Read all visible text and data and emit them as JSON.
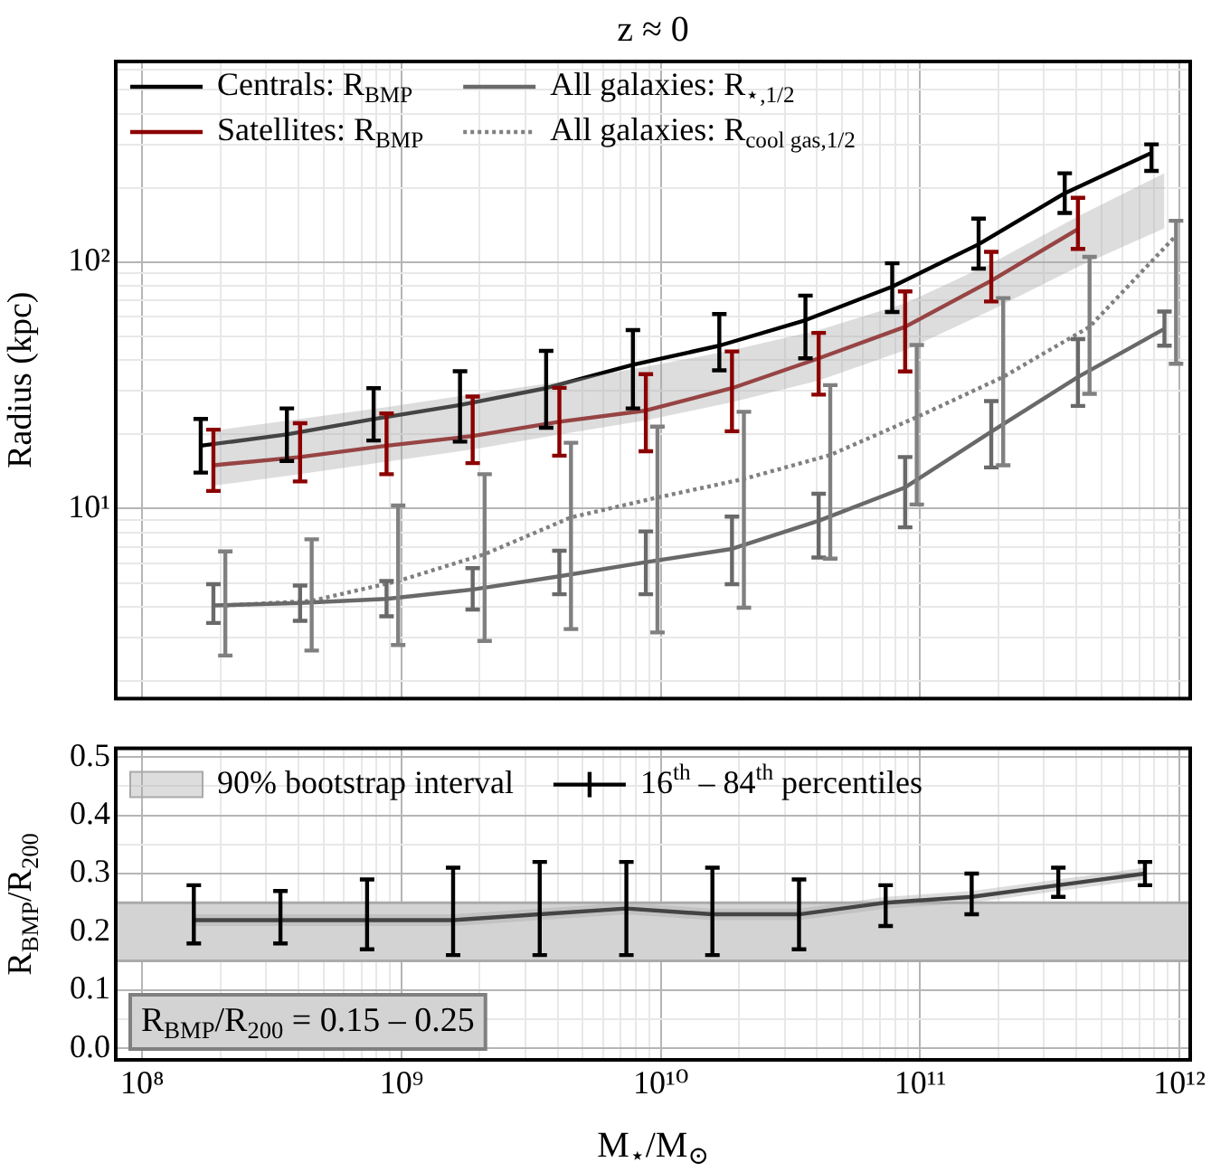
{
  "chart_data": [
    {
      "type": "line",
      "title": "z ≈ 0",
      "ylabel": "Radius (kpc)",
      "log": "xy",
      "grid": true,
      "legend": "top left",
      "tick_labels": "y",
      "marker": "none",
      "xlim": [
        79000000.0,
        1100000000000.0
      ],
      "ylim": [
        1.7,
        650
      ],
      "xticks": [
        {
          "value": 100000000.0,
          "label": null
        },
        {
          "value": 200000000.0,
          "label": null
        },
        {
          "value": 300000000.0,
          "label": null
        },
        {
          "value": 400000000.0,
          "label": null
        },
        {
          "value": 500000000.0,
          "label": null
        },
        {
          "value": 600000000.0,
          "label": null
        },
        {
          "value": 700000000.0,
          "label": null
        },
        {
          "value": 800000000.0,
          "label": null
        },
        {
          "value": 900000000.0,
          "label": null
        },
        {
          "value": 1000000000.0,
          "label": null
        },
        {
          "value": 2000000000.0,
          "label": null
        },
        {
          "value": 3000000000.0,
          "label": null
        },
        {
          "value": 4000000000.0,
          "label": null
        },
        {
          "value": 5000000000.0,
          "label": null
        },
        {
          "value": 6000000000.0,
          "label": null
        },
        {
          "value": 7000000000.0,
          "label": null
        },
        {
          "value": 8000000000.0,
          "label": null
        },
        {
          "value": 9000000000.0,
          "label": null
        },
        {
          "value": 10000000000.0,
          "label": null
        },
        {
          "value": 20000000000.0,
          "label": null
        },
        {
          "value": 30000000000.0,
          "label": null
        },
        {
          "value": 40000000000.0,
          "label": null
        },
        {
          "value": 50000000000.0,
          "label": null
        },
        {
          "value": 60000000000.0,
          "label": null
        },
        {
          "value": 70000000000.0,
          "label": null
        },
        {
          "value": 80000000000.0,
          "label": null
        },
        {
          "value": 90000000000.0,
          "label": null
        },
        {
          "value": 100000000000.0,
          "label": null
        },
        {
          "value": 200000000000.0,
          "label": null
        },
        {
          "value": 300000000000.0,
          "label": null
        },
        {
          "value": 400000000000.0,
          "label": null
        },
        {
          "value": 500000000000.0,
          "label": null
        },
        {
          "value": 600000000000.0,
          "label": null
        },
        {
          "value": 700000000000.0,
          "label": null
        },
        {
          "value": 800000000000.0,
          "label": null
        },
        {
          "value": 900000000000.0,
          "label": null
        },
        {
          "value": 1000000000000.0,
          "label": null
        }
      ],
      "yticks": [
        {
          "value": 2,
          "label": null
        },
        {
          "value": 3,
          "label": null
        },
        {
          "value": 4,
          "label": null
        },
        {
          "value": 5,
          "label": null
        },
        {
          "value": 6,
          "label": null
        },
        {
          "value": 7,
          "label": null
        },
        {
          "value": 8,
          "label": null
        },
        {
          "value": 9,
          "label": null
        },
        {
          "value": 10,
          "label": "10¹"
        },
        {
          "value": 20,
          "label": null
        },
        {
          "value": 30,
          "label": null
        },
        {
          "value": 40,
          "label": null
        },
        {
          "value": 50,
          "label": null
        },
        {
          "value": 60,
          "label": null
        },
        {
          "value": 70,
          "label": null
        },
        {
          "value": 80,
          "label": null
        },
        {
          "value": 90,
          "label": null
        },
        {
          "value": 100,
          "label": "10²"
        },
        {
          "value": 200,
          "label": null
        },
        {
          "value": 300,
          "label": null
        },
        {
          "value": 400,
          "label": null
        },
        {
          "value": 500,
          "label": null
        },
        {
          "value": 600,
          "label": null
        }
      ],
      "series": [
        {
          "type": "area",
          "color": "#a9a9a9",
          "x": [
            188000000.0,
            406000000.0,
            875000000.0,
            1880000000.0,
            4060000000.0,
            8750000000.0,
            18800000000.0,
            40600000000.0,
            87500000000.0,
            188000000000.0,
            406000000000.0,
            875000000000.0
          ],
          "values": [
            null,
            null,
            null,
            null,
            null,
            null,
            null,
            null,
            null,
            null,
            null,
            null
          ],
          "lower": [
            12.4,
            13.8,
            15.5,
            17.4,
            20.0,
            22.8,
            27.0,
            33.1,
            43.9,
            63.8,
            95.7,
            137
          ],
          "upper": [
            20.7,
            23.1,
            25.8,
            29.1,
            32.7,
            37.6,
            43.9,
            53.0,
            67.9,
            98.8,
            153,
            229
          ]
        },
        {
          "name": "Centrals: R$_{BMP}$",
          "color": "#000000",
          "x": [
            168000000.0,
            361000000.0,
            780000000.0,
            1680000000.0,
            3610000000.0,
            7800000000.0,
            16800000000.0,
            36100000000.0,
            78000000000.0,
            168000000000.0,
            361000000000.0,
            780000000000.0
          ],
          "values": [
            18.0,
            20.0,
            23.1,
            26.3,
            30.8,
            38.3,
            45.8,
            58.1,
            79.4,
            118,
            190,
            277
          ],
          "errors": [
            [
              14.0,
              23.1
            ],
            [
              15.6,
              25.5
            ],
            [
              18.9,
              30.8
            ],
            [
              18.7,
              36.1
            ],
            [
              21.3,
              43.6
            ],
            [
              25.5,
              53.0
            ],
            [
              36.4,
              61.5
            ],
            [
              40.7,
              73.1
            ],
            [
              62.7,
              98.8
            ],
            [
              94,
              150
            ],
            [
              158,
              229
            ],
            [
              234,
              300
            ]
          ]
        },
        {
          "name": "Satellites: R$_{BMP}$",
          "color": "#8b0000",
          "x": [
            188000000.0,
            406000000.0,
            875000000.0,
            1880000000.0,
            4060000000.0,
            8750000000.0,
            18800000000.0,
            40600000000.0,
            87500000000.0,
            188000000000.0,
            406000000000.0
          ],
          "values": [
            15.0,
            16.2,
            18.0,
            19.7,
            22.5,
            25.0,
            30.8,
            40.7,
            54.6,
            84,
            136
          ],
          "errors": [
            [
              11.8,
              20.9
            ],
            [
              12.9,
              22.2
            ],
            [
              13.8,
              24.3
            ],
            [
              15.3,
              28.5
            ],
            [
              16.4,
              30.9
            ],
            [
              17.1,
              35.1
            ],
            [
              20.6,
              43.4
            ],
            [
              29.0,
              51.6
            ],
            [
              36.0,
              76
            ],
            [
              69.2,
              110
            ],
            [
              113,
              182
            ]
          ]
        },
        {
          "name": "All galaxies: R$_{⋆,1/2}$",
          "color": "#696969",
          "x": [
            188000000.0,
            406000000.0,
            875000000.0,
            1880000000.0,
            4060000000.0,
            8750000000.0,
            18800000000.0,
            40600000000.0,
            87500000000.0,
            188000000000.0,
            406000000000.0,
            875000000000.0
          ],
          "values": [
            4.05,
            4.15,
            4.31,
            4.7,
            5.32,
            6.07,
            6.87,
            8.93,
            12.2,
            20.5,
            34.2,
            53.6
          ],
          "errors": [
            [
              3.44,
              4.94
            ],
            [
              3.51,
              4.88
            ],
            [
              3.66,
              5.09
            ],
            [
              3.9,
              5.74
            ],
            [
              4.5,
              6.75
            ],
            [
              4.5,
              8.09
            ],
            [
              4.94,
              9.29
            ],
            [
              6.34,
              11.5
            ],
            [
              8.4,
              16.2
            ],
            [
              14.7,
              27.3
            ],
            [
              26.1,
              48.7
            ],
            [
              45.8,
              63.0
            ]
          ]
        },
        {
          "name": "All galaxies: R$_{cool gas,1/2}$",
          "color": "#808080",
          "line_style": "dotted",
          "x": [
            209000000.0,
            450000000.0,
            970000000.0,
            2090000000.0,
            4500000000.0,
            9700000000.0,
            20900000000.0,
            45000000000.0,
            97000000000.0,
            209000000000.0,
            450000000000.0,
            970000000000.0
          ],
          "values": [
            4.05,
            4.23,
            5.09,
            6.54,
            9.22,
            11.1,
            13.2,
            16.5,
            23.5,
            34.2,
            54.6,
            128
          ],
          "errors": [
            [
              2.54,
              6.71
            ],
            [
              2.66,
              7.51
            ],
            [
              2.8,
              10.3
            ],
            [
              2.91,
              13.8
            ],
            [
              3.25,
              18.5
            ],
            [
              3.15,
              21.5
            ],
            [
              3.97,
              24.7
            ],
            [
              6.27,
              31.7
            ],
            [
              10.4,
              46.1
            ],
            [
              15.0,
              71.4
            ],
            [
              29.2,
              105
            ],
            [
              38.7,
              147
            ]
          ]
        }
      ]
    },
    {
      "type": "line",
      "xlabel": "M$_{⋆}$/M$_{⊙}$",
      "ylabel": "R$_{BMP}$/R$_{200}$",
      "log": "x",
      "grid": true,
      "legend": "top left",
      "marker": "none",
      "xlim": [
        79000000.0,
        1100000000000.0
      ],
      "ylim": [
        -0.02,
        0.515
      ],
      "xticks": [
        {
          "value": 100000000.0,
          "label": "10⁸"
        },
        {
          "value": 200000000.0,
          "label": null
        },
        {
          "value": 300000000.0,
          "label": null
        },
        {
          "value": 400000000.0,
          "label": null
        },
        {
          "value": 500000000.0,
          "label": null
        },
        {
          "value": 600000000.0,
          "label": null
        },
        {
          "value": 700000000.0,
          "label": null
        },
        {
          "value": 800000000.0,
          "label": null
        },
        {
          "value": 900000000.0,
          "label": null
        },
        {
          "value": 1000000000.0,
          "label": "10⁹"
        },
        {
          "value": 2000000000.0,
          "label": null
        },
        {
          "value": 3000000000.0,
          "label": null
        },
        {
          "value": 4000000000.0,
          "label": null
        },
        {
          "value": 5000000000.0,
          "label": null
        },
        {
          "value": 6000000000.0,
          "label": null
        },
        {
          "value": 7000000000.0,
          "label": null
        },
        {
          "value": 8000000000.0,
          "label": null
        },
        {
          "value": 9000000000.0,
          "label": null
        },
        {
          "value": 10000000000.0,
          "label": "10¹⁰"
        },
        {
          "value": 20000000000.0,
          "label": null
        },
        {
          "value": 30000000000.0,
          "label": null
        },
        {
          "value": 40000000000.0,
          "label": null
        },
        {
          "value": 50000000000.0,
          "label": null
        },
        {
          "value": 60000000000.0,
          "label": null
        },
        {
          "value": 70000000000.0,
          "label": null
        },
        {
          "value": 80000000000.0,
          "label": null
        },
        {
          "value": 90000000000.0,
          "label": null
        },
        {
          "value": 100000000000.0,
          "label": "10¹¹"
        },
        {
          "value": 200000000000.0,
          "label": null
        },
        {
          "value": 300000000000.0,
          "label": null
        },
        {
          "value": 400000000000.0,
          "label": null
        },
        {
          "value": 500000000000.0,
          "label": null
        },
        {
          "value": 600000000000.0,
          "label": null
        },
        {
          "value": 700000000000.0,
          "label": null
        },
        {
          "value": 800000000000.0,
          "label": null
        },
        {
          "value": 900000000000.0,
          "label": null
        },
        {
          "value": 1000000000000.0,
          "label": "10¹²"
        }
      ],
      "yticks": [
        {
          "value": 0,
          "label": "0.0"
        },
        {
          "value": 0.05,
          "label": null
        },
        {
          "value": 0.1,
          "label": "0.1"
        },
        {
          "value": 0.15,
          "label": null
        },
        {
          "value": 0.2,
          "label": "0.2"
        },
        {
          "value": 0.25,
          "label": null
        },
        {
          "value": 0.3,
          "label": "0.3"
        },
        {
          "value": 0.35,
          "label": null
        },
        {
          "value": 0.4,
          "label": "0.4"
        },
        {
          "value": 0.45,
          "label": null
        },
        {
          "value": 0.5,
          "label": "0.5"
        }
      ],
      "bands": [
        {
          "axis": "y",
          "from": 0.15,
          "to": 0.25,
          "label": "R$_{BMP}$/R$_{200}$ = 0.15 – 0.25",
          "color": "#d3d3d3"
        }
      ],
      "series": [
        {
          "name": "90% bootstrap interval",
          "type": "area",
          "color": "#a9a9a9",
          "x": [
            158000000.0,
            341000000.0,
            736000000.0,
            1580000000.0,
            3410000000.0,
            7360000000.0,
            15800000000.0,
            34100000000.0,
            73600000000.0,
            158000000000.0,
            341000000000.0,
            736000000000.0
          ],
          "values": [
            null,
            null,
            null,
            null,
            null,
            null,
            null,
            null,
            null,
            null,
            null,
            null
          ],
          "lower": [
            0.21,
            0.21,
            0.21,
            0.21,
            0.22,
            0.23,
            0.22,
            0.22,
            0.24,
            0.25,
            0.27,
            0.29
          ],
          "upper": [
            0.23,
            0.23,
            0.23,
            0.23,
            0.24,
            0.25,
            0.24,
            0.24,
            0.26,
            0.27,
            0.29,
            0.31
          ]
        },
        {
          "name": "16$^{th}$ – 84$^{th}$ percentiles",
          "color": "#000000",
          "x": [
            158000000.0,
            341000000.0,
            736000000.0,
            1580000000.0,
            3410000000.0,
            7360000000.0,
            15800000000.0,
            34100000000.0,
            73600000000.0,
            158000000000.0,
            341000000000.0,
            736000000000.0
          ],
          "values": [
            0.22,
            0.22,
            0.22,
            0.22,
            0.23,
            0.24,
            0.23,
            0.23,
            0.25,
            0.26,
            0.28,
            0.3
          ],
          "errors": [
            [
              0.18,
              0.28
            ],
            [
              0.18,
              0.27
            ],
            [
              0.17,
              0.29
            ],
            [
              0.16,
              0.31
            ],
            [
              0.16,
              0.32
            ],
            [
              0.16,
              0.32
            ],
            [
              0.16,
              0.31
            ],
            [
              0.17,
              0.29
            ],
            [
              0.21,
              0.28
            ],
            [
              0.23,
              0.3
            ],
            [
              0.26,
              0.31
            ],
            [
              0.28,
              0.32
            ]
          ]
        }
      ]
    }
  ]
}
